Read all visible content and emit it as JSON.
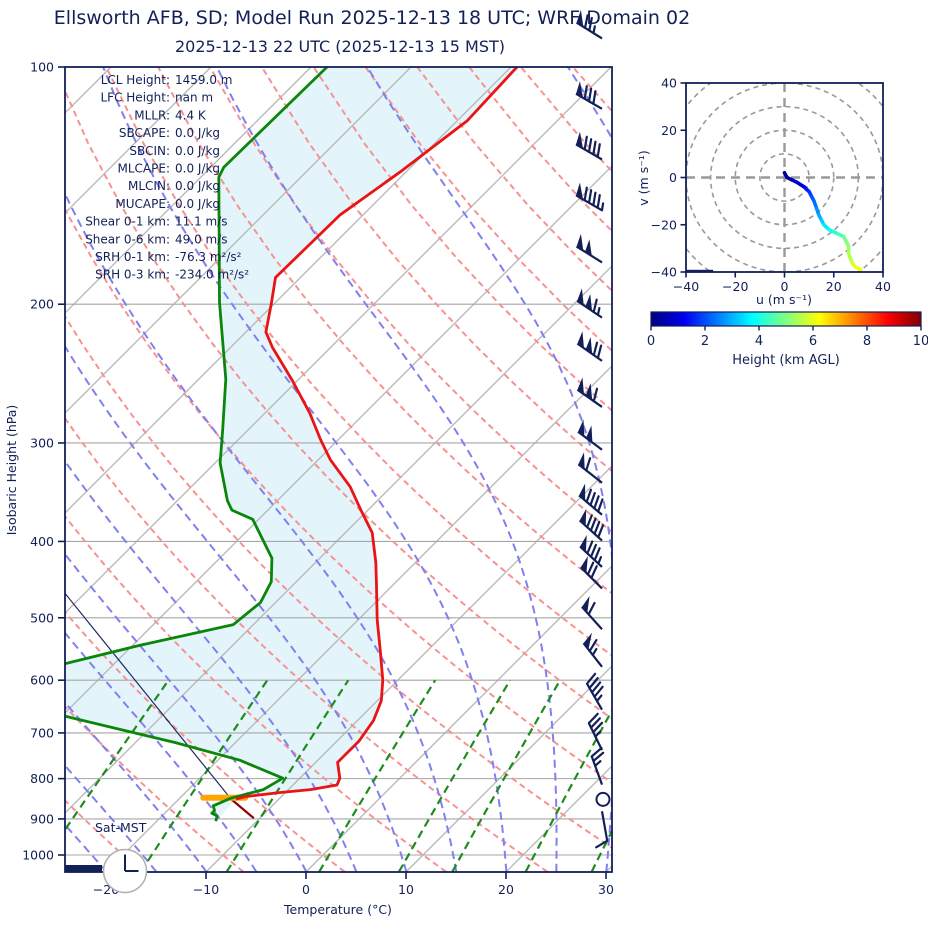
{
  "title": "Ellsworth AFB, SD; Model Run 2025-12-13 18 UTC; WRF Domain 02",
  "subtitle": "2025-12-13 22 UTC  (2025-12-13 15 MST)",
  "annotations": {
    "day_label": "Sat-MST",
    "clock_time": "15:00"
  },
  "colors": {
    "navy": "#132058",
    "temperature": "#e81416",
    "dewpoint": "#0a870a",
    "parcel": "#1b2a63",
    "parcel_surface_leg": "#8b0000",
    "lcl_bar": "#ffa500",
    "shading": "#e3f5fa",
    "isotherm": "#b4b4b4",
    "grid": "#a6a6a6",
    "dry_adiabat": "#f79292",
    "moist_adiabat": "#8080ee",
    "mixing_ratio": "#1d8c1d",
    "hodo_ring": "#999999"
  },
  "stats": [
    {
      "label": "LCL Height:",
      "value": "1459.0 m"
    },
    {
      "label": "LFC Height:",
      "value": "nan m"
    },
    {
      "label": "MLLR:",
      "value": "4.4 K"
    },
    {
      "label": "SBCAPE:",
      "value": "0.0 J/kg"
    },
    {
      "label": "SBCIN:",
      "value": "0.0 J/kg"
    },
    {
      "label": "MLCAPE:",
      "value": "0.0 J/kg"
    },
    {
      "label": "MLCIN:",
      "value": "0.0 J/kg"
    },
    {
      "label": "MUCAPE:",
      "value": "0.0 J/kg"
    },
    {
      "label": "Shear 0-1 km:",
      "value": "11.1 m/s"
    },
    {
      "label": "Shear 0-6 km:",
      "value": "49.0 m/s"
    },
    {
      "label": "SRH 0-1 km:",
      "value": "-76.3 m²/s²"
    },
    {
      "label": "SRH 0-3 km:",
      "value": "-234.0 m²/s²"
    }
  ],
  "chart_data": [
    {
      "type": "line",
      "name": "skew-t-log-p",
      "xlabel": "Temperature (°C)",
      "ylabel": "Isobaric Height (hPa)",
      "x_ticks": [
        -20,
        -10,
        0,
        10,
        20,
        30
      ],
      "pressure_ticks": [
        100,
        200,
        300,
        400,
        500,
        600,
        700,
        800,
        900,
        1000
      ],
      "pressure_range": [
        100,
        1050
      ],
      "xlim_bottom": [
        -24.1,
        30.6
      ],
      "skew_deg": 45,
      "grid": true,
      "series": [
        {
          "name": "temperature",
          "units": "hPa,°C",
          "points": [
            [
              100,
              -59.4
            ],
            [
              117,
              -59.0
            ],
            [
              136,
              -60.6
            ],
            [
              154,
              -62.3
            ],
            [
              185,
              -62.5
            ],
            [
              199,
              -60.4
            ],
            [
              217,
              -58.0
            ],
            [
              227,
              -55.8
            ],
            [
              250,
              -50.5
            ],
            [
              275,
              -45.5
            ],
            [
              297,
              -41.8
            ],
            [
              315,
              -38.8
            ],
            [
              341,
              -34.1
            ],
            [
              365,
              -30.7
            ],
            [
              390,
              -27.3
            ],
            [
              425,
              -24.0
            ],
            [
              455,
              -21.6
            ],
            [
              503,
              -18.1
            ],
            [
              549,
              -14.8
            ],
            [
              600,
              -11.5
            ],
            [
              637,
              -9.6
            ],
            [
              675,
              -8.4
            ],
            [
              716,
              -7.8
            ],
            [
              752,
              -7.8
            ],
            [
              763,
              -7.8
            ],
            [
              799,
              -6.0
            ],
            [
              815,
              -5.6
            ],
            [
              826,
              -7.8
            ],
            [
              833,
              -10.5
            ],
            [
              843,
              -13.6
            ],
            [
              849,
              -14.3
            ]
          ]
        },
        {
          "name": "dewpoint",
          "units": "hPa,°C",
          "points": [
            [
              100,
              -78.4
            ],
            [
              134,
              -78.7
            ],
            [
              138,
              -78.2
            ],
            [
              199,
              -65.6
            ],
            [
              249,
              -57.3
            ],
            [
              291,
              -52.3
            ],
            [
              318,
              -49.5
            ],
            [
              355,
              -45.0
            ],
            [
              365,
              -43.6
            ],
            [
              375,
              -40.6
            ],
            [
              420,
              -34.8
            ],
            [
              450,
              -32.5
            ],
            [
              478,
              -31.5
            ],
            [
              510,
              -32.0
            ],
            [
              542,
              -39.3
            ],
            [
              600,
              -50.0
            ],
            [
              665,
              -40.1
            ],
            [
              720,
              -26.0
            ],
            [
              758,
              -17.8
            ],
            [
              799,
              -11.7
            ],
            [
              826,
              -12.5
            ],
            [
              847,
              -14.9
            ],
            [
              866,
              -15.9
            ],
            [
              878,
              -15.3
            ],
            [
              885,
              -15.3
            ],
            [
              892,
              -14.5
            ],
            [
              906,
              -14.1
            ]
          ]
        },
        {
          "name": "parcel-path",
          "units": "hPa,°C",
          "points": [
            [
              898,
              -10.6
            ],
            [
              849,
              -14.8
            ],
            [
              466,
              -51.9
            ],
            [
              432,
              -55.2
            ]
          ]
        },
        {
          "name": "parcel-surface-leg",
          "units": "hPa,°C",
          "points": [
            [
              849,
              -14.8
            ],
            [
              898,
              -10.6
            ]
          ]
        }
      ],
      "lcl_bar": {
        "p": 846,
        "t_start": -17.7,
        "t_end": -13.5
      },
      "shading_between": [
        "dewpoint",
        "temperature"
      ],
      "background": {
        "isotherm_step_c": 10,
        "dry_adiabat_theta_c": {
          "min": -30,
          "max": 160,
          "step": 10
        },
        "moist_adiabat_t0_c": {
          "min": -40,
          "max": 40,
          "step": 5
        },
        "mixing_ratio_g_kg": [
          0.4,
          1,
          2,
          4,
          7,
          10,
          16,
          24,
          32
        ]
      },
      "wind_barbs": [
        {
          "p": 92,
          "speed_kt": 75,
          "dir_deg": 302
        },
        {
          "p": 113,
          "speed_kt": 80,
          "dir_deg": 300
        },
        {
          "p": 131,
          "speed_kt": 90,
          "dir_deg": 300
        },
        {
          "p": 152,
          "speed_kt": 95,
          "dir_deg": 300
        },
        {
          "p": 177,
          "speed_kt": 100,
          "dir_deg": 302
        },
        {
          "p": 208,
          "speed_kt": 115,
          "dir_deg": 304
        },
        {
          "p": 236,
          "speed_kt": 120,
          "dir_deg": 305
        },
        {
          "p": 270,
          "speed_kt": 110,
          "dir_deg": 305
        },
        {
          "p": 306,
          "speed_kt": 100,
          "dir_deg": 307
        },
        {
          "p": 337,
          "speed_kt": 60,
          "dir_deg": 308
        },
        {
          "p": 370,
          "speed_kt": 90,
          "dir_deg": 310
        },
        {
          "p": 399,
          "speed_kt": 90,
          "dir_deg": 312
        },
        {
          "p": 431,
          "speed_kt": 85,
          "dir_deg": 313
        },
        {
          "p": 459,
          "speed_kt": 70,
          "dir_deg": 315
        },
        {
          "p": 517,
          "speed_kt": 60,
          "dir_deg": 318
        },
        {
          "p": 577,
          "speed_kt": 65,
          "dir_deg": 322
        },
        {
          "p": 654,
          "speed_kt": 45,
          "dir_deg": 330
        },
        {
          "p": 736,
          "speed_kt": 35,
          "dir_deg": 334
        },
        {
          "p": 814,
          "speed_kt": 25,
          "dir_deg": 340
        },
        {
          "p": 880,
          "speed_kt": 10,
          "dir_deg": 170
        }
      ],
      "station_circle_p": 850
    },
    {
      "type": "line",
      "name": "hodograph",
      "xlabel": "u (m s⁻¹)",
      "ylabel": "v (m s⁻¹)",
      "xlim": [
        -40,
        40
      ],
      "ylim": [
        -40,
        40
      ],
      "axis_ticks": [
        -40,
        -20,
        0,
        20,
        40
      ],
      "ring_step": 10,
      "trace_u_v_heightkm": [
        [
          0,
          2,
          0
        ],
        [
          1,
          0,
          0.2
        ],
        [
          3,
          -1,
          0.5
        ],
        [
          5,
          -2,
          0.7
        ],
        [
          8,
          -4,
          1.0
        ],
        [
          9,
          -5,
          1.3
        ],
        [
          10,
          -6,
          1.6
        ],
        [
          11,
          -8,
          1.9
        ],
        [
          12,
          -10,
          2.2
        ],
        [
          13,
          -13,
          2.5
        ],
        [
          14,
          -16,
          2.8
        ],
        [
          15,
          -18,
          3.1
        ],
        [
          16,
          -20,
          3.4
        ],
        [
          18,
          -22,
          3.7
        ],
        [
          20,
          -23,
          4.0
        ],
        [
          22,
          -24,
          4.3
        ],
        [
          24,
          -25,
          4.6
        ],
        [
          25,
          -27,
          4.9
        ],
        [
          26,
          -29,
          5.2
        ],
        [
          26,
          -32,
          5.4
        ],
        [
          27,
          -35,
          5.6
        ],
        [
          28,
          -37,
          5.8
        ],
        [
          29,
          -38,
          6.0
        ],
        [
          31,
          -39,
          6.2
        ]
      ],
      "marker_bar": {
        "v": -40,
        "u_start": -40,
        "u_end": -29
      },
      "colorbar": {
        "label": "Height (km AGL)",
        "ticks": [
          0,
          2,
          4,
          6,
          8,
          10
        ],
        "min": 0,
        "max": 10,
        "colormap": "jet"
      }
    }
  ]
}
